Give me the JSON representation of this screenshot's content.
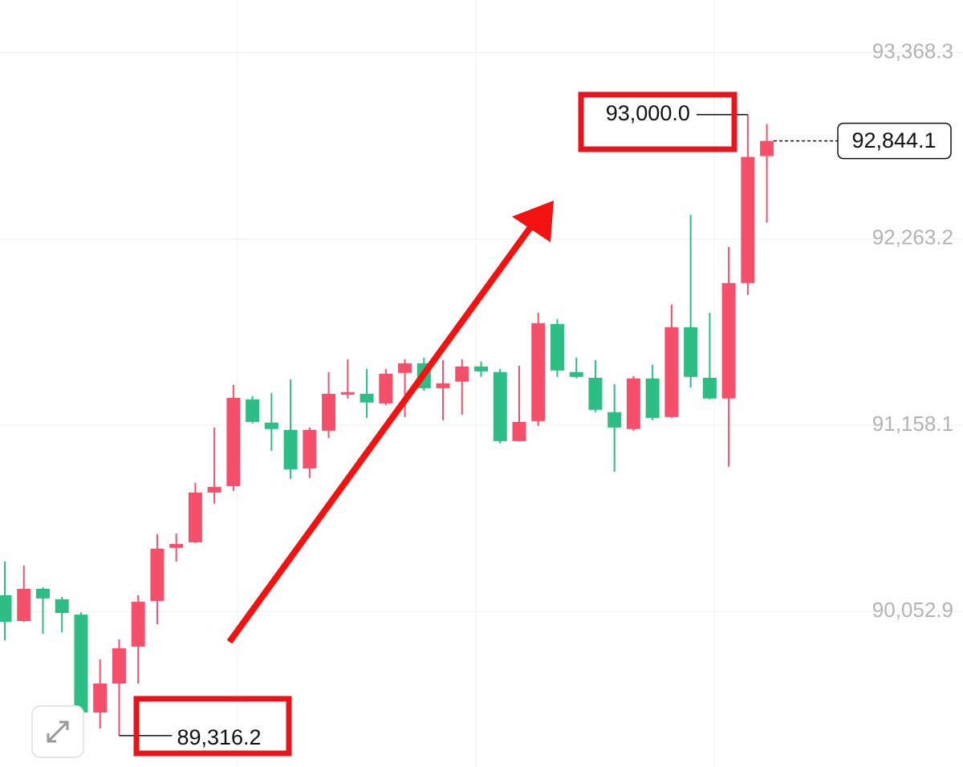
{
  "chart_data": {
    "type": "candlestick",
    "up_color": "#f4506c",
    "down_color": "#2ebd85",
    "ylim": [
      89130,
      93680
    ],
    "yticks": [
      {
        "value": 93368.3,
        "label": "93,368.3"
      },
      {
        "value": 92263.2,
        "label": "92,263.2"
      },
      {
        "value": 91158.1,
        "label": "91,158.1"
      },
      {
        "value": 90052.9,
        "label": "90,052.9"
      }
    ],
    "grid": true,
    "open": [
      90149,
      89996,
      90187,
      90125,
      90034,
      89453,
      89625,
      89844,
      90115,
      90430,
      90463,
      90758,
      90796,
      91311,
      91173,
      91130,
      90901,
      91125,
      91339,
      91344,
      91287,
      91468,
      91525,
      91377,
      91416,
      91506,
      91473,
      91063,
      91182,
      91758,
      91473,
      91439,
      91235,
      91135,
      91435,
      91206,
      91739,
      91439,
      91316,
      92001,
      92754
    ],
    "high": [
      90349,
      90325,
      90196,
      90139,
      90048,
      89768,
      89887,
      90149,
      90511,
      90515,
      90815,
      91144,
      91397,
      91330,
      91349,
      91430,
      91144,
      91473,
      91549,
      91492,
      91492,
      91549,
      91558,
      91544,
      91549,
      91535,
      91492,
      91511,
      91825,
      91787,
      91558,
      91544,
      91401,
      91449,
      91516,
      91873,
      92406,
      91825,
      92216,
      93000.0,
      92944
    ],
    "low": [
      89882,
      89991,
      89920,
      89929,
      89444,
      89358,
      89316.2,
      89625,
      89977,
      90349,
      90458,
      90692,
      90768,
      91168,
      91006,
      90839,
      90844,
      91082,
      91316,
      91201,
      91277,
      91206,
      91363,
      91187,
      91220,
      91444,
      91049,
      91063,
      91154,
      91444,
      91435,
      91235,
      90882,
      91125,
      91187,
      91201,
      91382,
      91311,
      90911,
      91930,
      92359
    ],
    "close": [
      89991,
      90187,
      90130,
      90044,
      89453,
      89625,
      89834,
      90110,
      90425,
      90453,
      90758,
      90792,
      91320,
      91177,
      91135,
      90896,
      91130,
      91344,
      91354,
      91292,
      91463,
      91525,
      91377,
      91406,
      91506,
      91477,
      91063,
      91177,
      91763,
      91482,
      91444,
      91249,
      91144,
      91435,
      91201,
      91739,
      91444,
      91316,
      92001,
      92749,
      92844.1
    ],
    "annotations": [
      {
        "value": 93000.0,
        "label": "93,000.0"
      },
      {
        "value": 89316.2,
        "label": "89,316.2"
      }
    ],
    "last_price": {
      "value": 92844.1,
      "label": "92,844.1"
    }
  }
}
